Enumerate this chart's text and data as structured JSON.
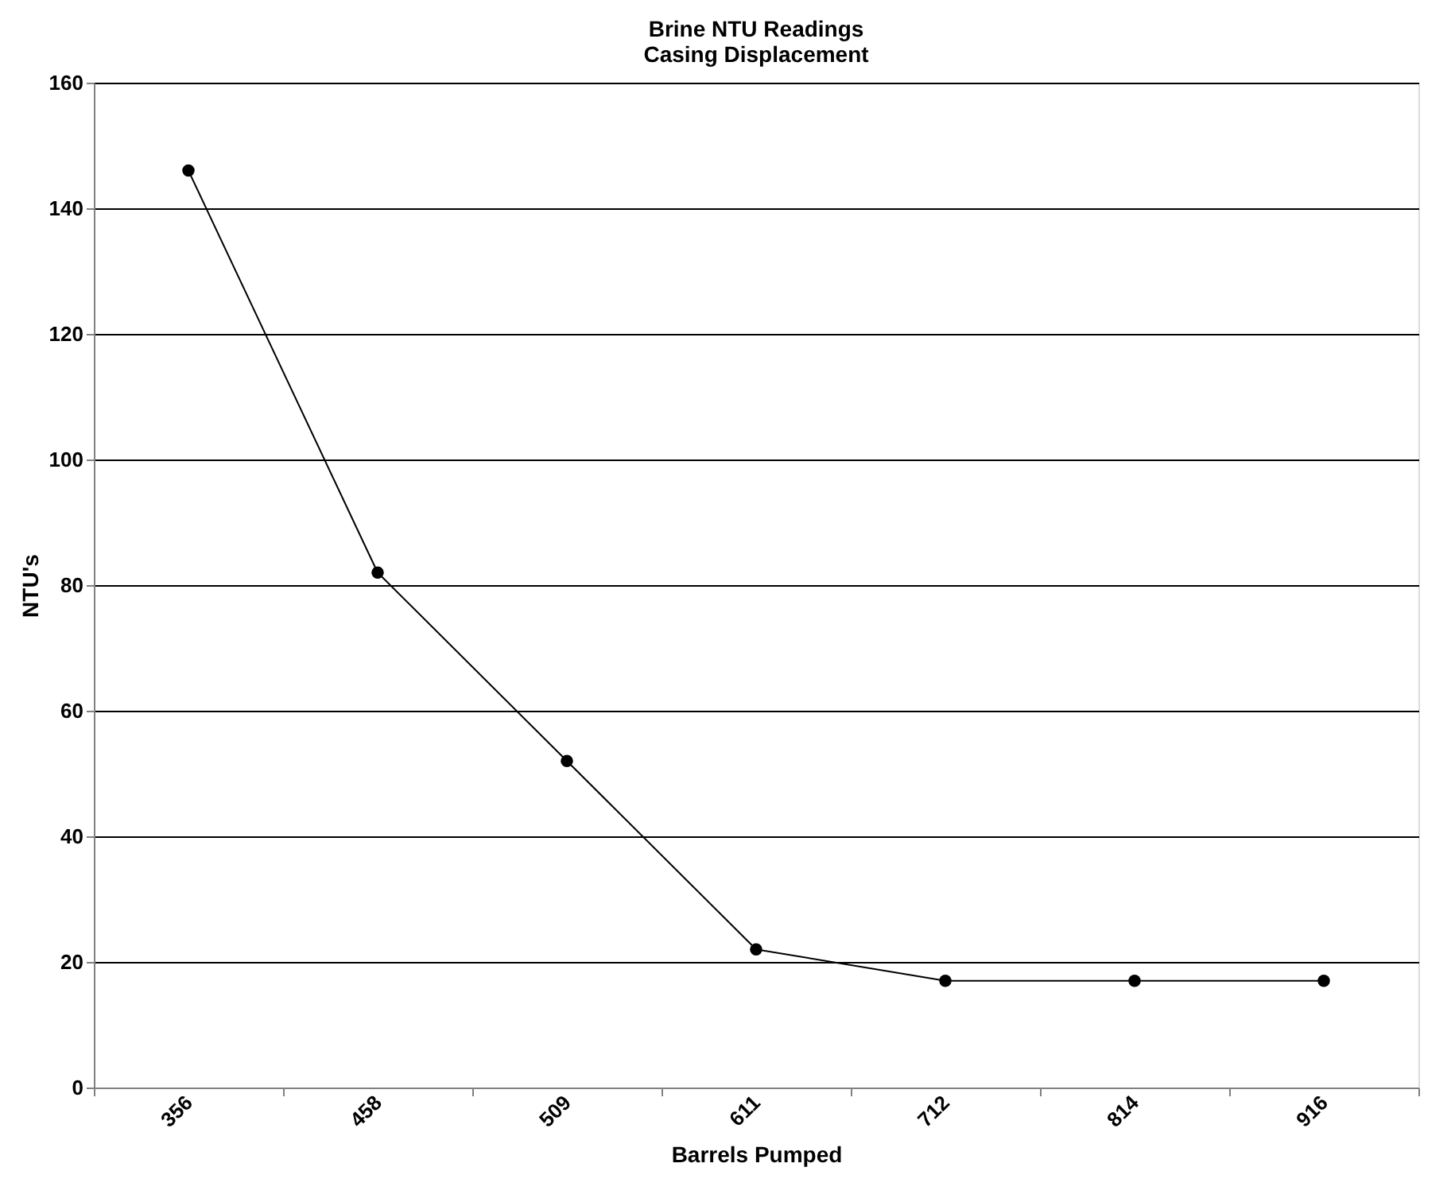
{
  "chart_data": {
    "type": "line",
    "title": [
      "Brine NTU Readings",
      "Casing Displacement"
    ],
    "xlabel": "Barrels Pumped",
    "ylabel": "NTU's",
    "categories": [
      "356",
      "458",
      "509",
      "611",
      "712",
      "814",
      "916"
    ],
    "series": [
      {
        "color": "#000000",
        "values": [
          146,
          82,
          52,
          22,
          17,
          17,
          17
        ]
      }
    ],
    "ylim": [
      0,
      160
    ],
    "yticks": [
      0,
      20,
      40,
      60,
      80,
      100,
      120,
      140,
      160
    ],
    "grid": "y",
    "marker": "circle",
    "line_style": "solid",
    "legend": false
  }
}
